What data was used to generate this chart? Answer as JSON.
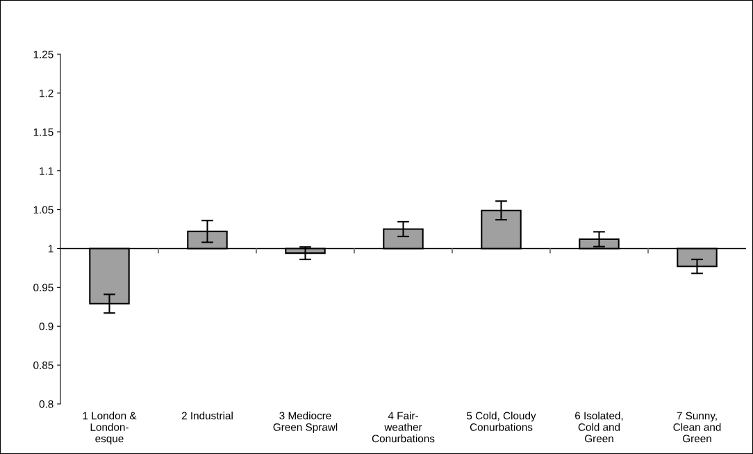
{
  "chart_data": {
    "type": "bar",
    "categories": [
      "1 London &\nLondon-\nesque",
      "2 Industrial",
      "3 Mediocre\nGreen Sprawl",
      "4 Fair-\nweather\nConurbations",
      "5 Cold, Cloudy\nConurbations",
      "6 Isolated,\nCold and\nGreen",
      "7 Sunny,\nClean and\nGreen"
    ],
    "base": [
      1,
      1,
      1,
      1,
      1,
      1,
      1
    ],
    "values": [
      -0.071,
      0.022,
      -0.006,
      0.025,
      0.049,
      0.012,
      -0.023
    ],
    "errors": [
      0.012,
      0.014,
      0.008,
      0.0095,
      0.012,
      0.0095,
      0.009
    ],
    "color": "#a0a0a0",
    "ylim": [
      0.8,
      1.25
    ],
    "yticks": [
      {
        "value": 0.8,
        "label": "0.8"
      },
      {
        "value": 0.85,
        "label": "0.85"
      },
      {
        "value": 0.9,
        "label": "0.9"
      },
      {
        "value": 0.95,
        "label": "0.95"
      },
      {
        "value": 1,
        "label": "1"
      },
      {
        "value": 1.05,
        "label": "1.05"
      },
      {
        "value": 1.1,
        "label": "1.1"
      },
      {
        "value": 1.15,
        "label": "1.15"
      },
      {
        "value": 1.2,
        "label": "1.2"
      },
      {
        "value": 1.25,
        "label": "1.25"
      }
    ],
    "ref_lines": [
      {
        "axis": "y",
        "value": 1,
        "color": "#000000"
      }
    ],
    "grid": false,
    "legend": false
  }
}
